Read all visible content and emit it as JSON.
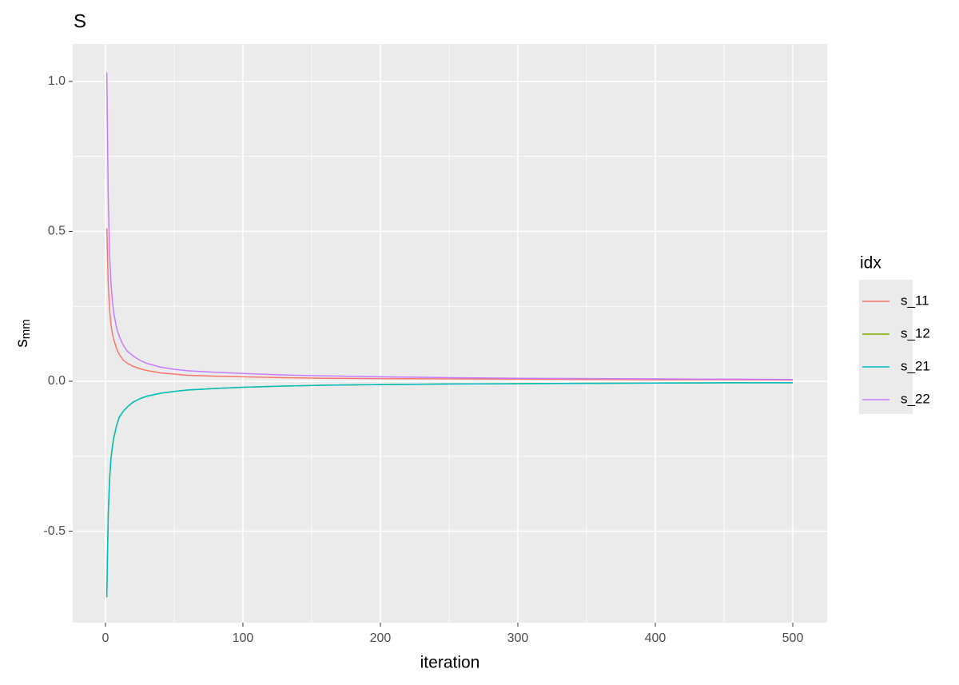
{
  "chart_data": {
    "type": "line",
    "title": "S",
    "x_label": "iteration",
    "y_label": "s",
    "y_label_subscript": "mm",
    "legend_title": "idx",
    "legend_position": "right",
    "x": [
      1,
      2,
      3,
      4,
      5,
      6,
      8,
      10,
      13,
      16,
      20,
      25,
      30,
      40,
      50,
      60,
      80,
      100,
      130,
      160,
      200,
      250,
      300,
      350,
      400,
      450,
      500
    ],
    "series": [
      {
        "name": "s_11",
        "color": "#f8766d",
        "values": [
          0.51,
          0.33,
          0.24,
          0.19,
          0.16,
          0.14,
          0.11,
          0.09,
          0.07,
          0.06,
          0.05,
          0.042,
          0.036,
          0.028,
          0.024,
          0.02,
          0.017,
          0.015,
          0.012,
          0.01,
          0.009,
          0.008,
          0.007,
          0.006,
          0.005,
          0.005,
          0.004
        ]
      },
      {
        "name": "s_12",
        "color": "#7cae00",
        "values": [
          -0.72,
          -0.45,
          -0.33,
          -0.26,
          -0.22,
          -0.19,
          -0.15,
          -0.12,
          -0.1,
          -0.085,
          -0.07,
          -0.058,
          -0.05,
          -0.04,
          -0.034,
          -0.029,
          -0.024,
          -0.02,
          -0.016,
          -0.013,
          -0.011,
          -0.009,
          -0.008,
          -0.007,
          -0.006,
          -0.005,
          -0.005
        ]
      },
      {
        "name": "s_21",
        "color": "#00bfc4",
        "values": [
          -0.72,
          -0.45,
          -0.33,
          -0.26,
          -0.22,
          -0.19,
          -0.15,
          -0.12,
          -0.1,
          -0.085,
          -0.07,
          -0.058,
          -0.05,
          -0.04,
          -0.034,
          -0.029,
          -0.024,
          -0.02,
          -0.016,
          -0.013,
          -0.011,
          -0.009,
          -0.008,
          -0.007,
          -0.006,
          -0.005,
          -0.005
        ]
      },
      {
        "name": "s_22",
        "color": "#c77cff",
        "values": [
          1.03,
          0.62,
          0.42,
          0.33,
          0.27,
          0.23,
          0.18,
          0.15,
          0.12,
          0.1,
          0.085,
          0.07,
          0.06,
          0.047,
          0.04,
          0.035,
          0.03,
          0.026,
          0.021,
          0.018,
          0.015,
          0.012,
          0.01,
          0.009,
          0.008,
          0.007,
          0.006
        ]
      }
    ],
    "xlim": [
      -23.8,
      525
    ],
    "ylim": [
      -0.805,
      1.125
    ],
    "xticks": [
      0,
      100,
      200,
      300,
      400,
      500
    ],
    "yticks": [
      -0.5,
      {
        "value": 0,
        "label": "0.0"
      },
      0.5,
      {
        "value": 1,
        "label": "1.0"
      }
    ],
    "x_minor_grid": [
      50,
      150,
      250,
      350,
      450
    ],
    "y_minor_grid": [
      -0.25,
      0.25,
      0.75
    ],
    "grid": true
  }
}
